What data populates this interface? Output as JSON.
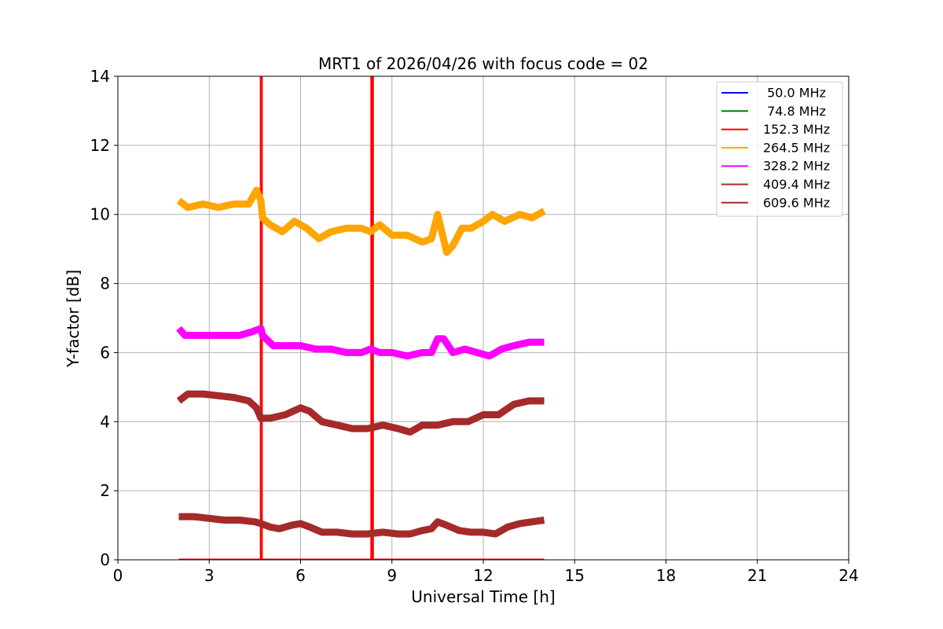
{
  "chart_data": {
    "type": "line",
    "title": "MRT1 of 2026/04/26 with focus code = 02",
    "xlabel": "Universal Time [h]",
    "ylabel": "Y-factor [dB]",
    "xlim": [
      0,
      24
    ],
    "ylim": [
      0,
      14
    ],
    "xticks": [
      "0",
      "3",
      "6",
      "9",
      "12",
      "15",
      "18",
      "21",
      "24"
    ],
    "yticks": [
      "0",
      "2",
      "4",
      "6",
      "8",
      "10",
      "12",
      "14"
    ],
    "grid": true,
    "legend_position": "top-right",
    "series": [
      {
        "name": " 50.0 MHz",
        "color": "#0000ff",
        "x": [],
        "y": []
      },
      {
        "name": " 74.8 MHz",
        "color": "#008000",
        "x": [],
        "y": []
      },
      {
        "name": "152.3 MHz",
        "color": "#ff0000",
        "x": [
          2.0,
          4.7,
          4.7,
          4.72,
          4.72,
          8.33,
          8.33,
          8.37,
          8.37,
          14.0
        ],
        "y": [
          0,
          0,
          14,
          14,
          0,
          0,
          14,
          14,
          0,
          0
        ]
      },
      {
        "name": "264.5 MHz",
        "color": "#ffa500",
        "x": [
          2.0,
          2.3,
          2.8,
          3.3,
          3.8,
          4.3,
          4.55,
          4.7,
          4.75,
          5.0,
          5.4,
          5.8,
          6.2,
          6.6,
          7.0,
          7.5,
          8.0,
          8.3,
          8.6,
          9.0,
          9.5,
          10.0,
          10.3,
          10.5,
          10.8,
          11.0,
          11.3,
          11.6,
          12.0,
          12.3,
          12.7,
          13.2,
          13.6,
          14.0
        ],
        "y": [
          10.4,
          10.2,
          10.3,
          10.2,
          10.3,
          10.3,
          10.7,
          10.4,
          9.9,
          9.7,
          9.5,
          9.8,
          9.6,
          9.3,
          9.5,
          9.6,
          9.6,
          9.5,
          9.7,
          9.4,
          9.4,
          9.2,
          9.3,
          10.0,
          8.9,
          9.1,
          9.6,
          9.6,
          9.8,
          10.0,
          9.8,
          10.0,
          9.9,
          10.1
        ]
      },
      {
        "name": "328.2 MHz",
        "color": "#ff00ff",
        "x": [
          2.0,
          2.2,
          2.6,
          3.0,
          3.5,
          4.0,
          4.4,
          4.7,
          4.75,
          5.1,
          5.5,
          6.0,
          6.5,
          7.0,
          7.5,
          8.0,
          8.3,
          8.6,
          9.0,
          9.5,
          10.0,
          10.3,
          10.5,
          10.7,
          11.0,
          11.4,
          11.8,
          12.2,
          12.6,
          13.0,
          13.5,
          14.0
        ],
        "y": [
          6.7,
          6.5,
          6.5,
          6.5,
          6.5,
          6.5,
          6.6,
          6.7,
          6.5,
          6.2,
          6.2,
          6.2,
          6.1,
          6.1,
          6.0,
          6.0,
          6.1,
          6.0,
          6.0,
          5.9,
          6.0,
          6.0,
          6.4,
          6.4,
          6.0,
          6.1,
          6.0,
          5.9,
          6.1,
          6.2,
          6.3,
          6.3
        ]
      },
      {
        "name": "409.4 MHz",
        "color": "#a52a2a",
        "x": [
          2.0,
          2.3,
          2.8,
          3.3,
          3.8,
          4.3,
          4.55,
          4.7,
          5.0,
          5.5,
          6.0,
          6.3,
          6.7,
          7.2,
          7.7,
          8.2,
          8.7,
          9.2,
          9.6,
          10.0,
          10.5,
          11.0,
          11.5,
          12.0,
          12.5,
          13.0,
          13.5,
          14.0
        ],
        "y": [
          4.6,
          4.8,
          4.8,
          4.75,
          4.7,
          4.6,
          4.4,
          4.1,
          4.1,
          4.2,
          4.4,
          4.3,
          4.0,
          3.9,
          3.8,
          3.8,
          3.9,
          3.8,
          3.7,
          3.9,
          3.9,
          4.0,
          4.0,
          4.2,
          4.2,
          4.5,
          4.6,
          4.6
        ]
      },
      {
        "name": "609.6 MHz",
        "color": "#a52a2a",
        "x": [
          2.0,
          2.5,
          3.0,
          3.5,
          4.0,
          4.5,
          4.7,
          5.0,
          5.3,
          5.7,
          6.0,
          6.3,
          6.7,
          7.2,
          7.7,
          8.2,
          8.7,
          9.2,
          9.6,
          10.0,
          10.3,
          10.5,
          10.8,
          11.2,
          11.6,
          12.0,
          12.4,
          12.8,
          13.2,
          13.6,
          14.0
        ],
        "y": [
          1.25,
          1.25,
          1.2,
          1.15,
          1.15,
          1.1,
          1.05,
          0.95,
          0.9,
          1.0,
          1.05,
          0.95,
          0.8,
          0.8,
          0.75,
          0.75,
          0.8,
          0.75,
          0.75,
          0.85,
          0.9,
          1.1,
          1.0,
          0.85,
          0.8,
          0.8,
          0.75,
          0.95,
          1.05,
          1.1,
          1.15
        ]
      }
    ]
  }
}
